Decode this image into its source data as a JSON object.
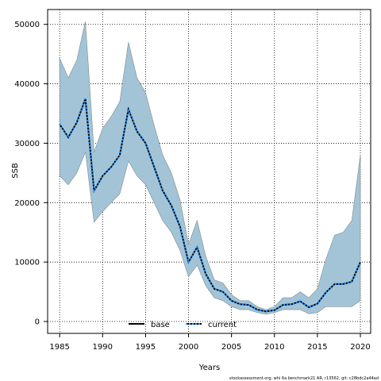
{
  "chart_data": {
    "type": "line",
    "xlabel": "Years",
    "ylabel": "SSB",
    "xlim": [
      1983.6,
      2021.2
    ],
    "ylim": [
      -2000,
      52500
    ],
    "xticks": [
      1985,
      1990,
      1995,
      2000,
      2005,
      2010,
      2015,
      2020
    ],
    "yticks": [
      0,
      10000,
      20000,
      30000,
      40000,
      50000
    ],
    "grid": true,
    "legend": {
      "placement": "bottom-center"
    },
    "x": [
      1985,
      1986,
      1987,
      1988,
      1989,
      1990,
      1991,
      1992,
      1993,
      1994,
      1995,
      1996,
      1997,
      1998,
      1999,
      2000,
      2001,
      2002,
      2003,
      2004,
      2005,
      2006,
      2007,
      2008,
      2009,
      2010,
      2011,
      2012,
      2013,
      2014,
      2015,
      2016,
      2017,
      2018,
      2019,
      2020
    ],
    "band": {
      "color": "#a3c4d6",
      "upper": [
        44300,
        41000,
        44000,
        50500,
        28500,
        32500,
        34500,
        37000,
        47000,
        41000,
        38500,
        33000,
        28000,
        25000,
        20500,
        13000,
        17000,
        11000,
        7000,
        6500,
        4500,
        3500,
        3500,
        2500,
        2000,
        2500,
        4000,
        4000,
        5000,
        4000,
        5500,
        10500,
        14500,
        15000,
        17000,
        28000
      ],
      "lower": [
        24500,
        23000,
        25000,
        28500,
        16700,
        18500,
        20000,
        21500,
        27000,
        24500,
        23000,
        20000,
        17000,
        15000,
        12000,
        7500,
        9500,
        6000,
        4000,
        3500,
        2500,
        2000,
        2000,
        1500,
        1200,
        1500,
        2000,
        2000,
        2000,
        1300,
        1500,
        2500,
        2500,
        2500,
        2500,
        3500
      ]
    },
    "series": [
      {
        "name": "base",
        "color": "#000000",
        "values": [
          33200,
          31000,
          33500,
          37500,
          22000,
          24500,
          26000,
          28000,
          35700,
          32000,
          30000,
          26000,
          22000,
          19500,
          16000,
          10000,
          12500,
          8000,
          5500,
          5000,
          3500,
          2900,
          2800,
          2000,
          1700,
          1900,
          2800,
          2900,
          3400,
          2400,
          3000,
          4900,
          6300,
          6300,
          6700,
          10000
        ]
      },
      {
        "name": "current",
        "color": "#1e90ff",
        "values": [
          33200,
          31000,
          33500,
          37500,
          22000,
          24500,
          26000,
          28000,
          35700,
          32000,
          30000,
          26000,
          22000,
          19500,
          16000,
          10000,
          12500,
          8000,
          5500,
          5000,
          3500,
          2900,
          2800,
          2000,
          1700,
          1900,
          2800,
          2900,
          3400,
          2400,
          3000,
          4900,
          6300,
          6300,
          6700,
          10000
        ]
      }
    ],
    "annotations": [
      "stockassessment.org, whi 6a benchmark21 AR, r13562, git: c28bdc2a44ad"
    ]
  }
}
